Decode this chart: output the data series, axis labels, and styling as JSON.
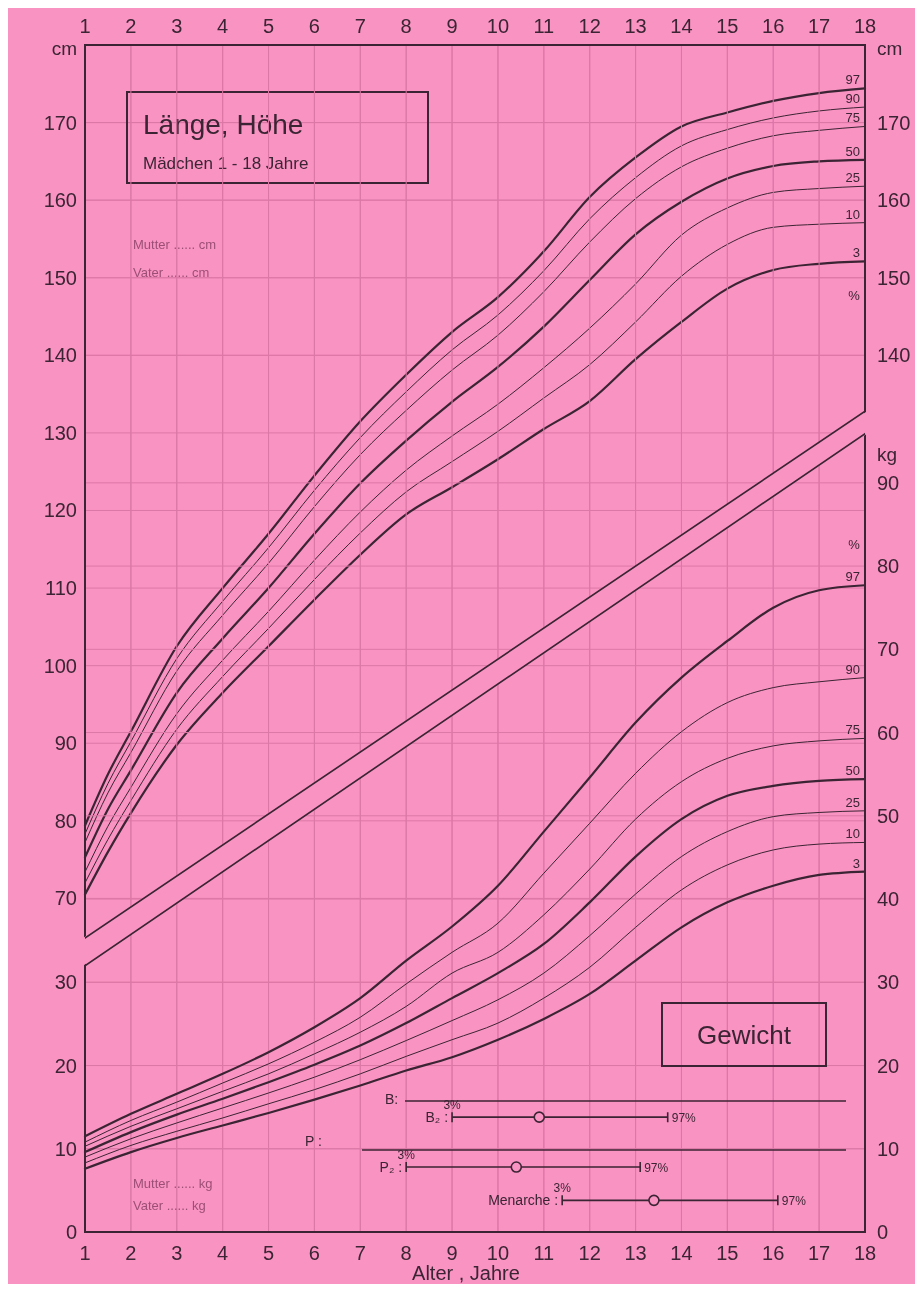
{
  "chart_data": [
    {
      "type": "line",
      "title": "Länge, Höhe",
      "subtitle": "Mädchen 1 - 18 Jahre",
      "ylabel": "cm",
      "y2label": "cm",
      "xlim": [
        1,
        18
      ],
      "xticks": [
        1,
        2,
        3,
        4,
        5,
        6,
        7,
        8,
        9,
        10,
        11,
        12,
        13,
        14,
        15,
        16,
        17,
        18
      ],
      "ylim": [
        27,
        180
      ],
      "yticks": [
        70,
        80,
        90,
        100,
        110,
        120,
        130,
        140,
        150,
        160,
        170
      ],
      "y2lim": [
        27,
        180
      ],
      "y2ticks": [
        140,
        150,
        160,
        170
      ],
      "grid": true,
      "series": [
        {
          "name": "97",
          "color": "#3b2433",
          "x": [
            1,
            1.5,
            2,
            3,
            4,
            5,
            6,
            7,
            8,
            9,
            10,
            11,
            12,
            13,
            14,
            15,
            16,
            17,
            18
          ],
          "values": [
            79.4,
            86,
            91.5,
            102.5,
            110,
            117,
            124.5,
            131.5,
            137.5,
            143,
            147.5,
            153.4,
            160.4,
            165.5,
            169.5,
            171.3,
            172.8,
            173.8,
            174.4
          ]
        },
        {
          "name": "90",
          "color": "#3b2433",
          "x": [
            1,
            1.5,
            2,
            3,
            4,
            5,
            6,
            7,
            8,
            9,
            10,
            11,
            12,
            13,
            14,
            15,
            16,
            17,
            18
          ],
          "values": [
            78.3,
            84.8,
            90.2,
            100.9,
            108.3,
            115.2,
            122.6,
            129.4,
            135.3,
            140.7,
            145.2,
            150.9,
            157.6,
            162.9,
            167,
            169.1,
            170.6,
            171.5,
            172
          ]
        },
        {
          "name": "75",
          "color": "#3b2433",
          "x": [
            1,
            1.5,
            2,
            3,
            4,
            5,
            6,
            7,
            8,
            9,
            10,
            11,
            12,
            13,
            14,
            15,
            16,
            17,
            18
          ],
          "values": [
            77.2,
            83.6,
            88.8,
            99.3,
            106.5,
            113.2,
            120.5,
            127.2,
            132.9,
            138.1,
            142.6,
            148.2,
            154.6,
            160.2,
            164.3,
            166.7,
            168.3,
            169,
            169.5
          ]
        },
        {
          "name": "50",
          "color": "#3b2433",
          "x": [
            1,
            1.5,
            2,
            3,
            4,
            5,
            6,
            7,
            8,
            9,
            10,
            11,
            12,
            13,
            14,
            15,
            16,
            17,
            18
          ],
          "values": [
            75.3,
            81.5,
            86.5,
            96.5,
            103.5,
            110,
            117,
            123.5,
            129,
            134,
            138.5,
            143.7,
            149.7,
            155.6,
            159.8,
            162.8,
            164.4,
            165,
            165.2
          ]
        },
        {
          "name": "25",
          "color": "#3b2433",
          "x": [
            1,
            1.5,
            2,
            3,
            4,
            5,
            6,
            7,
            8,
            9,
            10,
            11,
            12,
            13,
            14,
            15,
            16,
            17,
            18
          ],
          "values": [
            73.4,
            79.3,
            84.3,
            93.8,
            100.7,
            107,
            113.6,
            119.8,
            125.2,
            129.6,
            133.7,
            138.4,
            143.5,
            149.2,
            155.5,
            159,
            161,
            161.5,
            161.8
          ]
        },
        {
          "name": "10",
          "color": "#3b2433",
          "x": [
            1,
            1.5,
            2,
            3,
            4,
            5,
            6,
            7,
            8,
            9,
            10,
            11,
            12,
            13,
            14,
            15,
            16,
            17,
            18
          ],
          "values": [
            72,
            77.6,
            82.6,
            91.8,
            98.6,
            104.8,
            111.1,
            117.1,
            122.4,
            126.3,
            130.2,
            134.5,
            138.8,
            144.3,
            150.2,
            154.3,
            156.5,
            156.9,
            157.1
          ]
        },
        {
          "name": "3",
          "color": "#3b2433",
          "x": [
            1,
            1.5,
            2,
            3,
            4,
            5,
            6,
            7,
            8,
            9,
            10,
            11,
            12,
            13,
            14,
            15,
            16,
            17,
            18
          ],
          "values": [
            70.5,
            76,
            81,
            89.8,
            96.5,
            102.5,
            108.5,
            114.3,
            119.5,
            123,
            126.6,
            130.5,
            134.1,
            139.5,
            144.3,
            148.6,
            151,
            151.8,
            152.1
          ]
        }
      ],
      "annotations": [
        "%",
        "Mutter ...... cm",
        "Vater ...... cm"
      ]
    },
    {
      "type": "line",
      "xlabel": "Alter , Jahre",
      "y2label": "kg",
      "xlim": [
        1,
        18
      ],
      "xticks": [
        1,
        2,
        3,
        4,
        5,
        6,
        7,
        8,
        9,
        10,
        11,
        12,
        13,
        14,
        15,
        16,
        17,
        18
      ],
      "ylim": [
        0,
        142.6
      ],
      "yticks": [
        0,
        10,
        20,
        30
      ],
      "legend": "bottom",
      "y2lim": [
        0,
        142.6
      ],
      "y2ticks": [
        0,
        10,
        20,
        30,
        40,
        50,
        60,
        70,
        80,
        90
      ],
      "grid": true,
      "series": [
        {
          "name": "97",
          "color": "#3b2433",
          "x": [
            1,
            2,
            3,
            4,
            5,
            6,
            7,
            8,
            9,
            10,
            11,
            12,
            13,
            14,
            15,
            16,
            17,
            18
          ],
          "values": [
            11.5,
            14.2,
            16.6,
            19,
            21.6,
            24.6,
            28.1,
            32.6,
            36.7,
            41.6,
            48.1,
            54.6,
            61.2,
            66.6,
            71,
            75,
            77.1,
            77.7
          ]
        },
        {
          "name": "90",
          "color": "#3b2433",
          "x": [
            1,
            2,
            3,
            4,
            5,
            6,
            7,
            8,
            9,
            10,
            11,
            12,
            13,
            14,
            15,
            16,
            17,
            18
          ],
          "values": [
            10.8,
            13.4,
            15.6,
            17.9,
            20.2,
            22.8,
            25.8,
            29.8,
            33.6,
            37.1,
            43.1,
            49.1,
            55.1,
            60.1,
            63.6,
            65.4,
            66.1,
            66.6
          ]
        },
        {
          "name": "75",
          "color": "#3b2433",
          "x": [
            1,
            2,
            3,
            4,
            5,
            6,
            7,
            8,
            9,
            10,
            11,
            12,
            13,
            14,
            15,
            16,
            17,
            18
          ],
          "values": [
            10.3,
            12.7,
            14.8,
            16.9,
            19,
            21.4,
            24,
            27.1,
            31.1,
            33.6,
            38.1,
            43.6,
            49.6,
            54.1,
            56.9,
            58.4,
            59,
            59.3
          ]
        },
        {
          "name": "50",
          "color": "#3b2433",
          "x": [
            1,
            2,
            3,
            4,
            5,
            6,
            7,
            8,
            9,
            10,
            11,
            12,
            13,
            14,
            15,
            16,
            17,
            18
          ],
          "values": [
            9.6,
            12,
            14.1,
            16,
            18,
            20.1,
            22.4,
            25.1,
            28.1,
            31.1,
            34.6,
            39.6,
            45.1,
            49.6,
            52.4,
            53.6,
            54.2,
            54.4
          ]
        },
        {
          "name": "25",
          "color": "#3b2433",
          "x": [
            1,
            2,
            3,
            4,
            5,
            6,
            7,
            8,
            9,
            10,
            11,
            12,
            13,
            14,
            15,
            16,
            17,
            18
          ],
          "values": [
            9,
            11.2,
            13.1,
            14.9,
            16.7,
            18.6,
            20.7,
            23,
            25.4,
            27.9,
            31.1,
            35.6,
            40.6,
            45.1,
            48.1,
            49.9,
            50.4,
            50.6
          ]
        },
        {
          "name": "10",
          "color": "#3b2433",
          "x": [
            1,
            2,
            3,
            4,
            5,
            6,
            7,
            8,
            9,
            10,
            11,
            12,
            13,
            14,
            15,
            16,
            17,
            18
          ],
          "values": [
            8.3,
            10.4,
            12.1,
            13.7,
            15.4,
            17.1,
            19,
            21.1,
            23.1,
            25.1,
            28.1,
            31.8,
            36.6,
            41.1,
            44.1,
            45.9,
            46.6,
            46.8
          ]
        },
        {
          "name": "3",
          "color": "#3b2433",
          "x": [
            1,
            2,
            3,
            4,
            5,
            6,
            7,
            8,
            9,
            10,
            11,
            12,
            13,
            14,
            15,
            16,
            17,
            18
          ],
          "values": [
            7.6,
            9.6,
            11.3,
            12.8,
            14.3,
            15.9,
            17.6,
            19.4,
            21,
            23.1,
            25.6,
            28.6,
            32.6,
            36.6,
            39.6,
            41.6,
            42.9,
            43.3
          ]
        },
        {
          "name": "B₂ :",
          "color": "#3b2433",
          "x": [
            9.0,
            13.7
          ],
          "values": [
            13.8,
            13.8
          ]
        },
        {
          "type": "scatter",
          "marker": "circle",
          "color": "#3b2433",
          "x": [
            10.9
          ],
          "values": [
            13.8
          ]
        },
        {
          "name": "P₂ :",
          "color": "#3b2433",
          "x": [
            8.0,
            13.1
          ],
          "values": [
            7.8,
            7.8
          ]
        },
        {
          "type": "scatter",
          "marker": "circle",
          "color": "#3b2433",
          "x": [
            10.4
          ],
          "values": [
            7.8
          ]
        },
        {
          "name": "Menarche :",
          "color": "#3b2433",
          "x": [
            11.4,
            16.1
          ],
          "values": [
            3.8,
            3.8
          ]
        },
        {
          "type": "scatter",
          "marker": "circle",
          "color": "#3b2433",
          "x": [
            13.4
          ],
          "values": [
            3.8
          ]
        }
      ],
      "annotations": [
        "Gewicht",
        "%",
        "B:",
        "P :",
        "Mutter ...... kg",
        "Vater ...... kg",
        {
          "text": "3%",
          "x": 9.0,
          "y": 13.8
        },
        {
          "text": "97%",
          "x": 13.7,
          "y": 13.8
        },
        {
          "text": "3%",
          "x": 8.0,
          "y": 7.8
        },
        {
          "text": "97%",
          "x": 13.1,
          "y": 7.8
        },
        {
          "text": "3%",
          "x": 11.4,
          "y": 3.8
        },
        {
          "text": "97%",
          "x": 16.1,
          "y": 3.8
        }
      ]
    }
  ]
}
